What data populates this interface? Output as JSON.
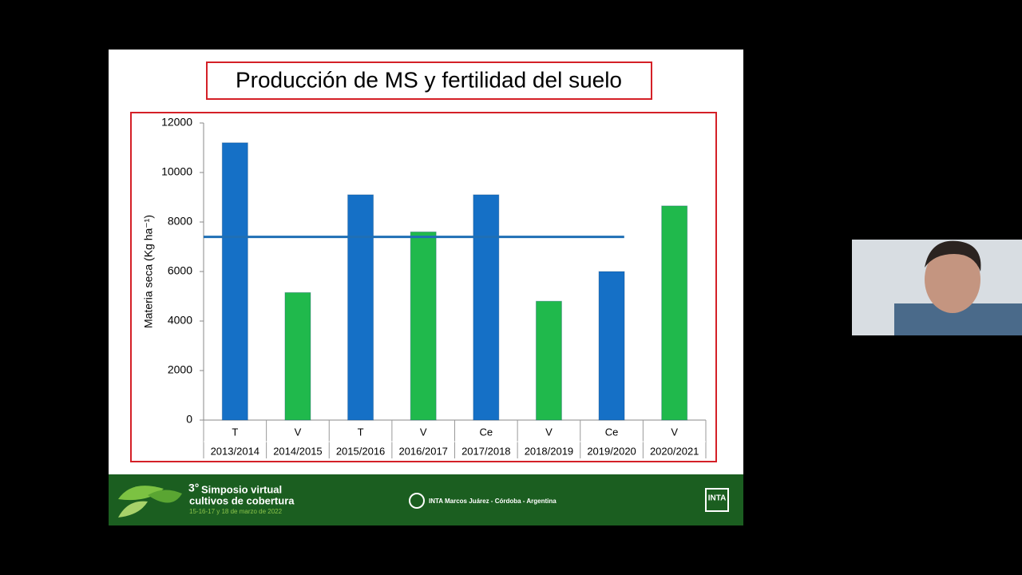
{
  "chart_data": {
    "type": "bar",
    "title": "Producción de MS y fertilidad del suelo",
    "y_label": "Materia seca (Kg ha⁻¹)",
    "categories": [
      "2013/2014",
      "2014/2015",
      "2015/2016",
      "2016/2017",
      "2017/2018",
      "2018/2019",
      "2019/2020",
      "2020/2021"
    ],
    "groups": [
      "T",
      "V",
      "T",
      "V",
      "Ce",
      "V",
      "Ce",
      "V"
    ],
    "values": [
      11200,
      5150,
      9100,
      7600,
      9100,
      4800,
      6000,
      8650
    ],
    "colors": [
      "#1570c6",
      "#20b94c",
      "#1570c6",
      "#20b94c",
      "#1570c6",
      "#20b94c",
      "#1570c6",
      "#20b94c"
    ],
    "reference_line": {
      "value": 7400,
      "color": "#1f6fb5"
    },
    "ylim": [
      0,
      12000
    ],
    "yticks": [
      0,
      2000,
      4000,
      6000,
      8000,
      10000,
      12000
    ],
    "grid": false
  },
  "footer": {
    "event_number": "3°",
    "event_line1": "Simposio virtual",
    "event_line2": "cultivos de cobertura",
    "event_dates": "15-16-17 y 18 de marzo de 2022",
    "location": "INTA Marcos Juárez - Córdoba - Argentina",
    "logo": "INTA"
  }
}
